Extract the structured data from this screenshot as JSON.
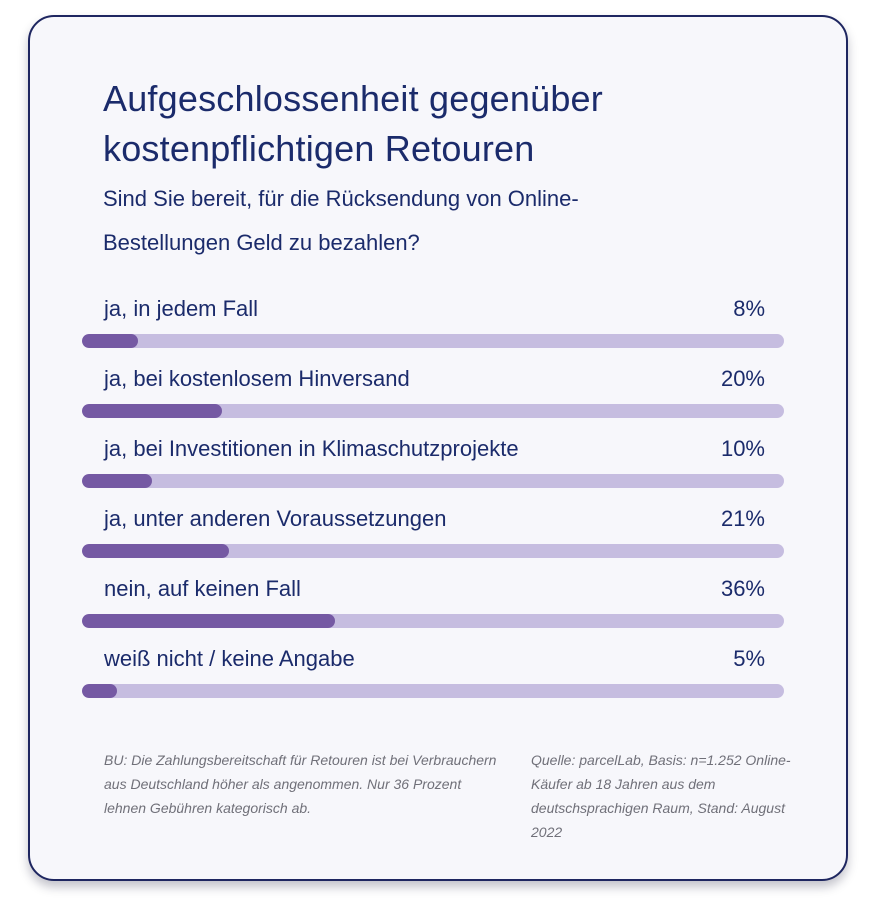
{
  "title": "Aufgeschlossenheit gegenüber kostenpflichtigen Retouren",
  "subtitle": "Sind Sie bereit, für die Rücksendung von Online-Bestellungen Geld zu bezahlen?",
  "colors": {
    "text": "#1b2b6b",
    "card_background": "#f7f7fb",
    "card_border": "#1e2660",
    "bar_track": "#c6bde0",
    "bar_fill": "#7559a3",
    "footnote_text": "#707079"
  },
  "chart_data": {
    "type": "bar",
    "orientation": "horizontal",
    "title": "Aufgeschlossenheit gegenüber kostenpflichtigen Retouren",
    "subtitle": "Sind Sie bereit, für die Rücksendung von Online-Bestellungen Geld zu bezahlen?",
    "unit": "%",
    "xlim": [
      0,
      100
    ],
    "categories": [
      "ja, in jedem Fall",
      "ja, bei kostenlosem Hinversand",
      "ja, bei Investitionen in Klimaschutzprojekte",
      "ja, unter anderen Voraussetzungen",
      "nein, auf keinen Fall",
      "weiß nicht / keine Angabe"
    ],
    "values": [
      8,
      20,
      10,
      21,
      36,
      5
    ],
    "value_labels": [
      "8%",
      "20%",
      "10%",
      "21%",
      "36%",
      "5%"
    ]
  },
  "footnotes": {
    "caption": "BU: Die Zahlungsbereitschaft für Retouren ist bei Verbrauchern aus Deutschland höher als angenommen. Nur 36 Prozent lehnen Gebühren kategorisch ab.",
    "source": "Quelle: parcelLab, Basis: n=1.252 Online-Käufer ab 18 Jahren aus dem deutschsprachigen Raum, Stand: August 2022"
  }
}
